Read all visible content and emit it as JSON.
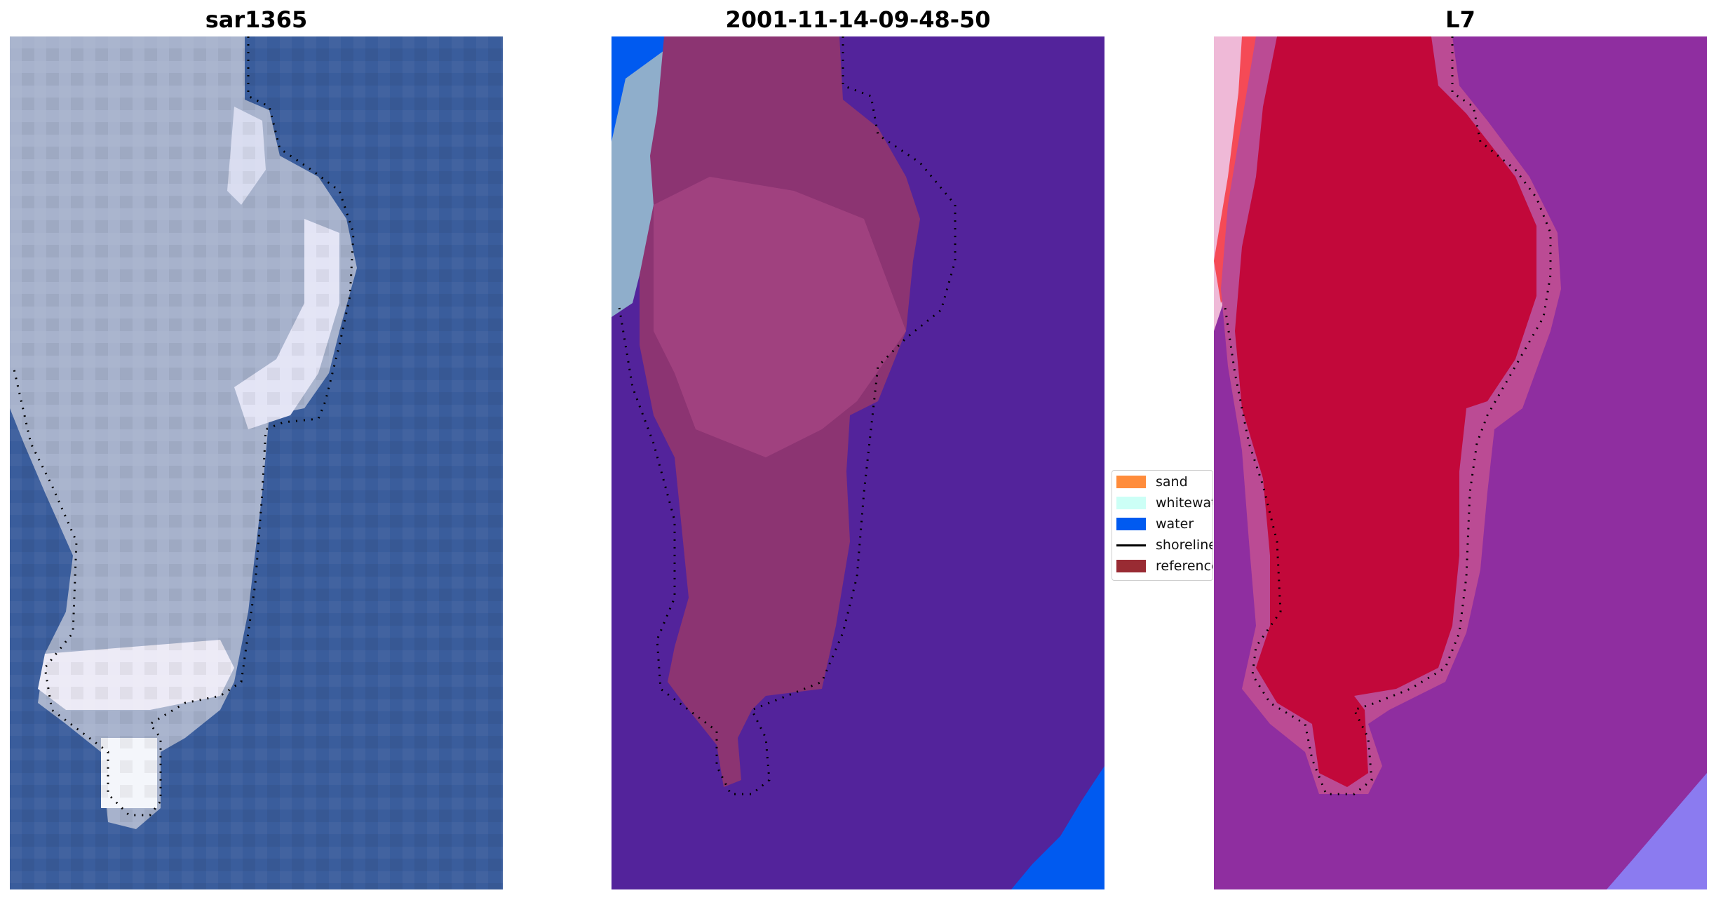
{
  "panels": [
    {
      "title": "sar1365"
    },
    {
      "title": "2001-11-14-09-48-50"
    },
    {
      "title": "L7"
    }
  ],
  "legend": {
    "items": [
      {
        "label": "sand",
        "color": "#ff8c3b",
        "kind": "patch"
      },
      {
        "label": "whitewater",
        "color": "#ccfff6",
        "kind": "patch"
      },
      {
        "label": "water",
        "color": "#005af0",
        "kind": "patch"
      },
      {
        "label": "shoreline",
        "color": "#000000",
        "kind": "line"
      },
      {
        "label": "reference",
        "color": "#992b33",
        "kind": "patch"
      }
    ]
  },
  "colors": {
    "sar_water": "#3a5d9c",
    "sar_island": "#a7b2cc",
    "class_background": "#53239b",
    "class_island": "#8c3472",
    "class_water": "#005af0",
    "l7_background": "#8f2ea0",
    "l7_island": "#c2083a",
    "shoreline": "#000000"
  }
}
